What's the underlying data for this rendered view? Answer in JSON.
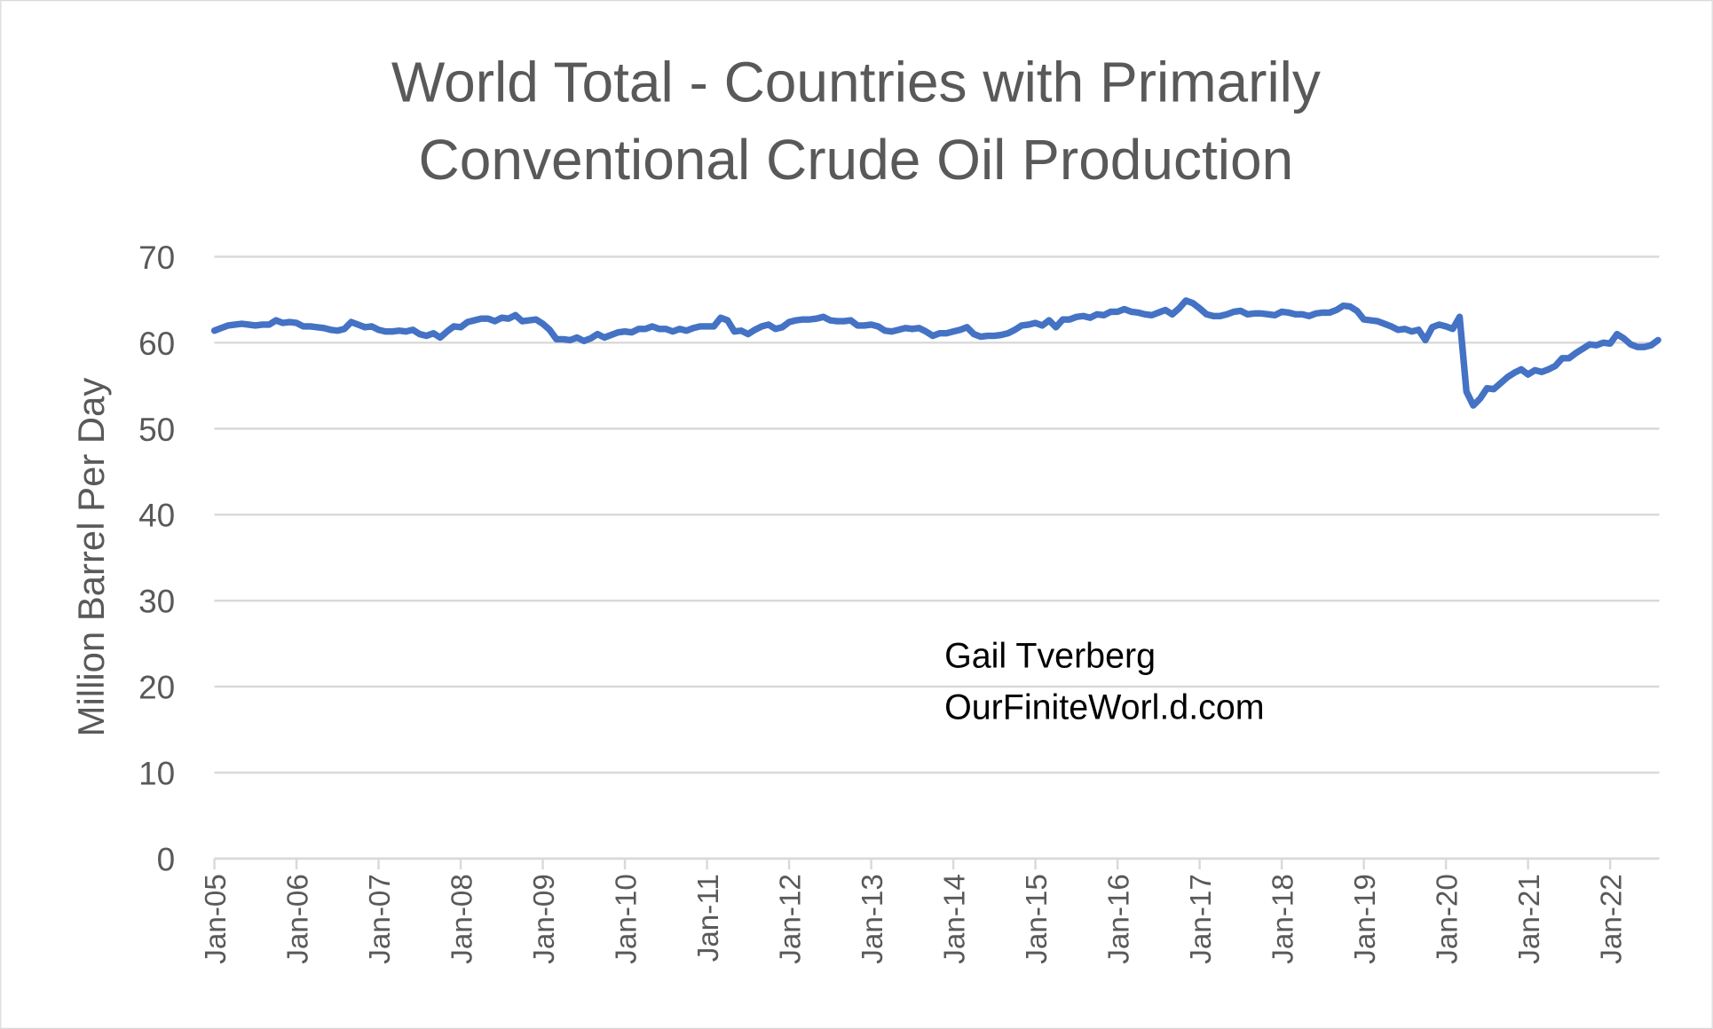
{
  "chart_data": {
    "type": "line",
    "title": [
      "World Total - Countries with Primarily",
      "Conventional Crude Oil Production"
    ],
    "y_label": "Million Barrel Per Day",
    "annotation": [
      "Gail Tverberg",
      "OurFiniteWorl.d.com"
    ],
    "color": "#4472c4",
    "grid": true,
    "ylim": [
      0,
      70
    ],
    "yticks": [
      0,
      10,
      20,
      30,
      40,
      50,
      60,
      70
    ],
    "categories": [
      "Jan-05",
      null,
      null,
      null,
      null,
      null,
      null,
      null,
      null,
      null,
      null,
      null,
      "Jan-06",
      null,
      null,
      null,
      null,
      null,
      null,
      null,
      null,
      null,
      null,
      null,
      "Jan-07",
      null,
      null,
      null,
      null,
      null,
      null,
      null,
      null,
      null,
      null,
      null,
      "Jan-08",
      null,
      null,
      null,
      null,
      null,
      null,
      null,
      null,
      null,
      null,
      null,
      "Jan-09",
      null,
      null,
      null,
      null,
      null,
      null,
      null,
      null,
      null,
      null,
      null,
      "Jan-10",
      null,
      null,
      null,
      null,
      null,
      null,
      null,
      null,
      null,
      null,
      null,
      "Jan-11",
      null,
      null,
      null,
      null,
      null,
      null,
      null,
      null,
      null,
      null,
      null,
      "Jan-12",
      null,
      null,
      null,
      null,
      null,
      null,
      null,
      null,
      null,
      null,
      null,
      "Jan-13",
      null,
      null,
      null,
      null,
      null,
      null,
      null,
      null,
      null,
      null,
      null,
      "Jan-14",
      null,
      null,
      null,
      null,
      null,
      null,
      null,
      null,
      null,
      null,
      null,
      "Jan-15",
      null,
      null,
      null,
      null,
      null,
      null,
      null,
      null,
      null,
      null,
      null,
      "Jan-16",
      null,
      null,
      null,
      null,
      null,
      null,
      null,
      null,
      null,
      null,
      null,
      "Jan-17",
      null,
      null,
      null,
      null,
      null,
      null,
      null,
      null,
      null,
      null,
      null,
      "Jan-18",
      null,
      null,
      null,
      null,
      null,
      null,
      null,
      null,
      null,
      null,
      null,
      "Jan-19",
      null,
      null,
      null,
      null,
      null,
      null,
      null,
      null,
      null,
      null,
      null,
      "Jan-20",
      null,
      null,
      null,
      null,
      null,
      null,
      null,
      null,
      null,
      null,
      null,
      "Jan-21",
      null,
      null,
      null,
      null,
      null,
      null,
      null,
      null,
      null,
      null,
      null,
      "Jan-22",
      null,
      null,
      null,
      null,
      null,
      null,
      null
    ],
    "values": [
      61.4,
      61.7,
      62.0,
      62.1,
      62.2,
      62.1,
      62.0,
      62.1,
      62.1,
      62.6,
      62.3,
      62.4,
      62.3,
      61.9,
      61.9,
      61.8,
      61.7,
      61.5,
      61.4,
      61.6,
      62.4,
      62.1,
      61.8,
      61.9,
      61.5,
      61.3,
      61.3,
      61.4,
      61.3,
      61.5,
      61.0,
      60.8,
      61.1,
      60.6,
      61.3,
      61.9,
      61.8,
      62.4,
      62.6,
      62.8,
      62.8,
      62.5,
      62.9,
      62.8,
      63.2,
      62.5,
      62.6,
      62.7,
      62.2,
      61.5,
      60.4,
      60.4,
      60.3,
      60.6,
      60.2,
      60.5,
      61.0,
      60.6,
      60.9,
      61.2,
      61.3,
      61.2,
      61.6,
      61.6,
      61.9,
      61.6,
      61.6,
      61.3,
      61.6,
      61.4,
      61.7,
      61.9,
      61.9,
      61.9,
      62.9,
      62.6,
      61.3,
      61.4,
      61.0,
      61.5,
      61.9,
      62.1,
      61.6,
      61.8,
      62.4,
      62.6,
      62.7,
      62.7,
      62.8,
      63.0,
      62.6,
      62.5,
      62.5,
      62.6,
      62.0,
      62.0,
      62.1,
      61.9,
      61.4,
      61.3,
      61.5,
      61.7,
      61.6,
      61.7,
      61.3,
      60.8,
      61.1,
      61.1,
      61.3,
      61.5,
      61.8,
      61.0,
      60.7,
      60.8,
      60.8,
      60.9,
      61.1,
      61.5,
      62.0,
      62.1,
      62.3,
      62.0,
      62.6,
      61.8,
      62.7,
      62.7,
      63.0,
      63.1,
      62.9,
      63.3,
      63.2,
      63.6,
      63.6,
      63.9,
      63.6,
      63.5,
      63.3,
      63.2,
      63.5,
      63.8,
      63.3,
      64.0,
      64.9,
      64.6,
      64.0,
      63.3,
      63.1,
      63.1,
      63.3,
      63.6,
      63.7,
      63.3,
      63.4,
      63.4,
      63.3,
      63.2,
      63.6,
      63.5,
      63.3,
      63.3,
      63.1,
      63.4,
      63.5,
      63.5,
      63.8,
      64.3,
      64.2,
      63.7,
      62.7,
      62.6,
      62.5,
      62.2,
      61.9,
      61.5,
      61.6,
      61.3,
      61.5,
      60.3,
      61.8,
      62.1,
      61.9,
      61.6,
      63.0,
      54.3,
      52.7,
      53.5,
      54.7,
      54.6,
      55.3,
      56.0,
      56.5,
      56.9,
      56.3,
      56.8,
      56.6,
      56.9,
      57.3,
      58.2,
      58.2,
      58.8,
      59.3,
      59.8,
      59.7,
      60.0,
      59.9,
      61.0,
      60.5,
      59.8,
      59.5,
      59.5,
      59.7,
      60.3
    ]
  }
}
